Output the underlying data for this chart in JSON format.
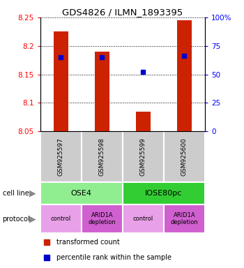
{
  "title": "GDS4826 / ILMN_1893395",
  "samples": [
    "GSM925597",
    "GSM925598",
    "GSM925599",
    "GSM925600"
  ],
  "transformed_counts": [
    8.225,
    8.19,
    8.085,
    8.245
  ],
  "percentile_ranks": [
    65,
    65,
    52,
    66
  ],
  "ylim": [
    8.05,
    8.25
  ],
  "yticks_left": [
    8.05,
    8.1,
    8.15,
    8.2,
    8.25
  ],
  "yticks_right": [
    0,
    25,
    50,
    75,
    100
  ],
  "ytick_labels_right": [
    "0",
    "25",
    "50",
    "75",
    "100%"
  ],
  "cell_line_info": [
    [
      "OSE4",
      0,
      2,
      "#90ee90"
    ],
    [
      "IOSE80pc",
      2,
      4,
      "#32cd32"
    ]
  ],
  "prot_info": [
    [
      "control",
      0,
      1,
      "#e8a0e8"
    ],
    [
      "ARID1A\ndepletion",
      1,
      2,
      "#d060d0"
    ],
    [
      "control",
      2,
      3,
      "#e8a0e8"
    ],
    [
      "ARID1A\ndepletion",
      3,
      4,
      "#d060d0"
    ]
  ],
  "bar_color": "#cc2200",
  "dot_color": "#0000cc",
  "bar_width": 0.35,
  "sample_box_color": "#cccccc",
  "legend_red": "transformed count",
  "legend_blue": "percentile rank within the sample"
}
